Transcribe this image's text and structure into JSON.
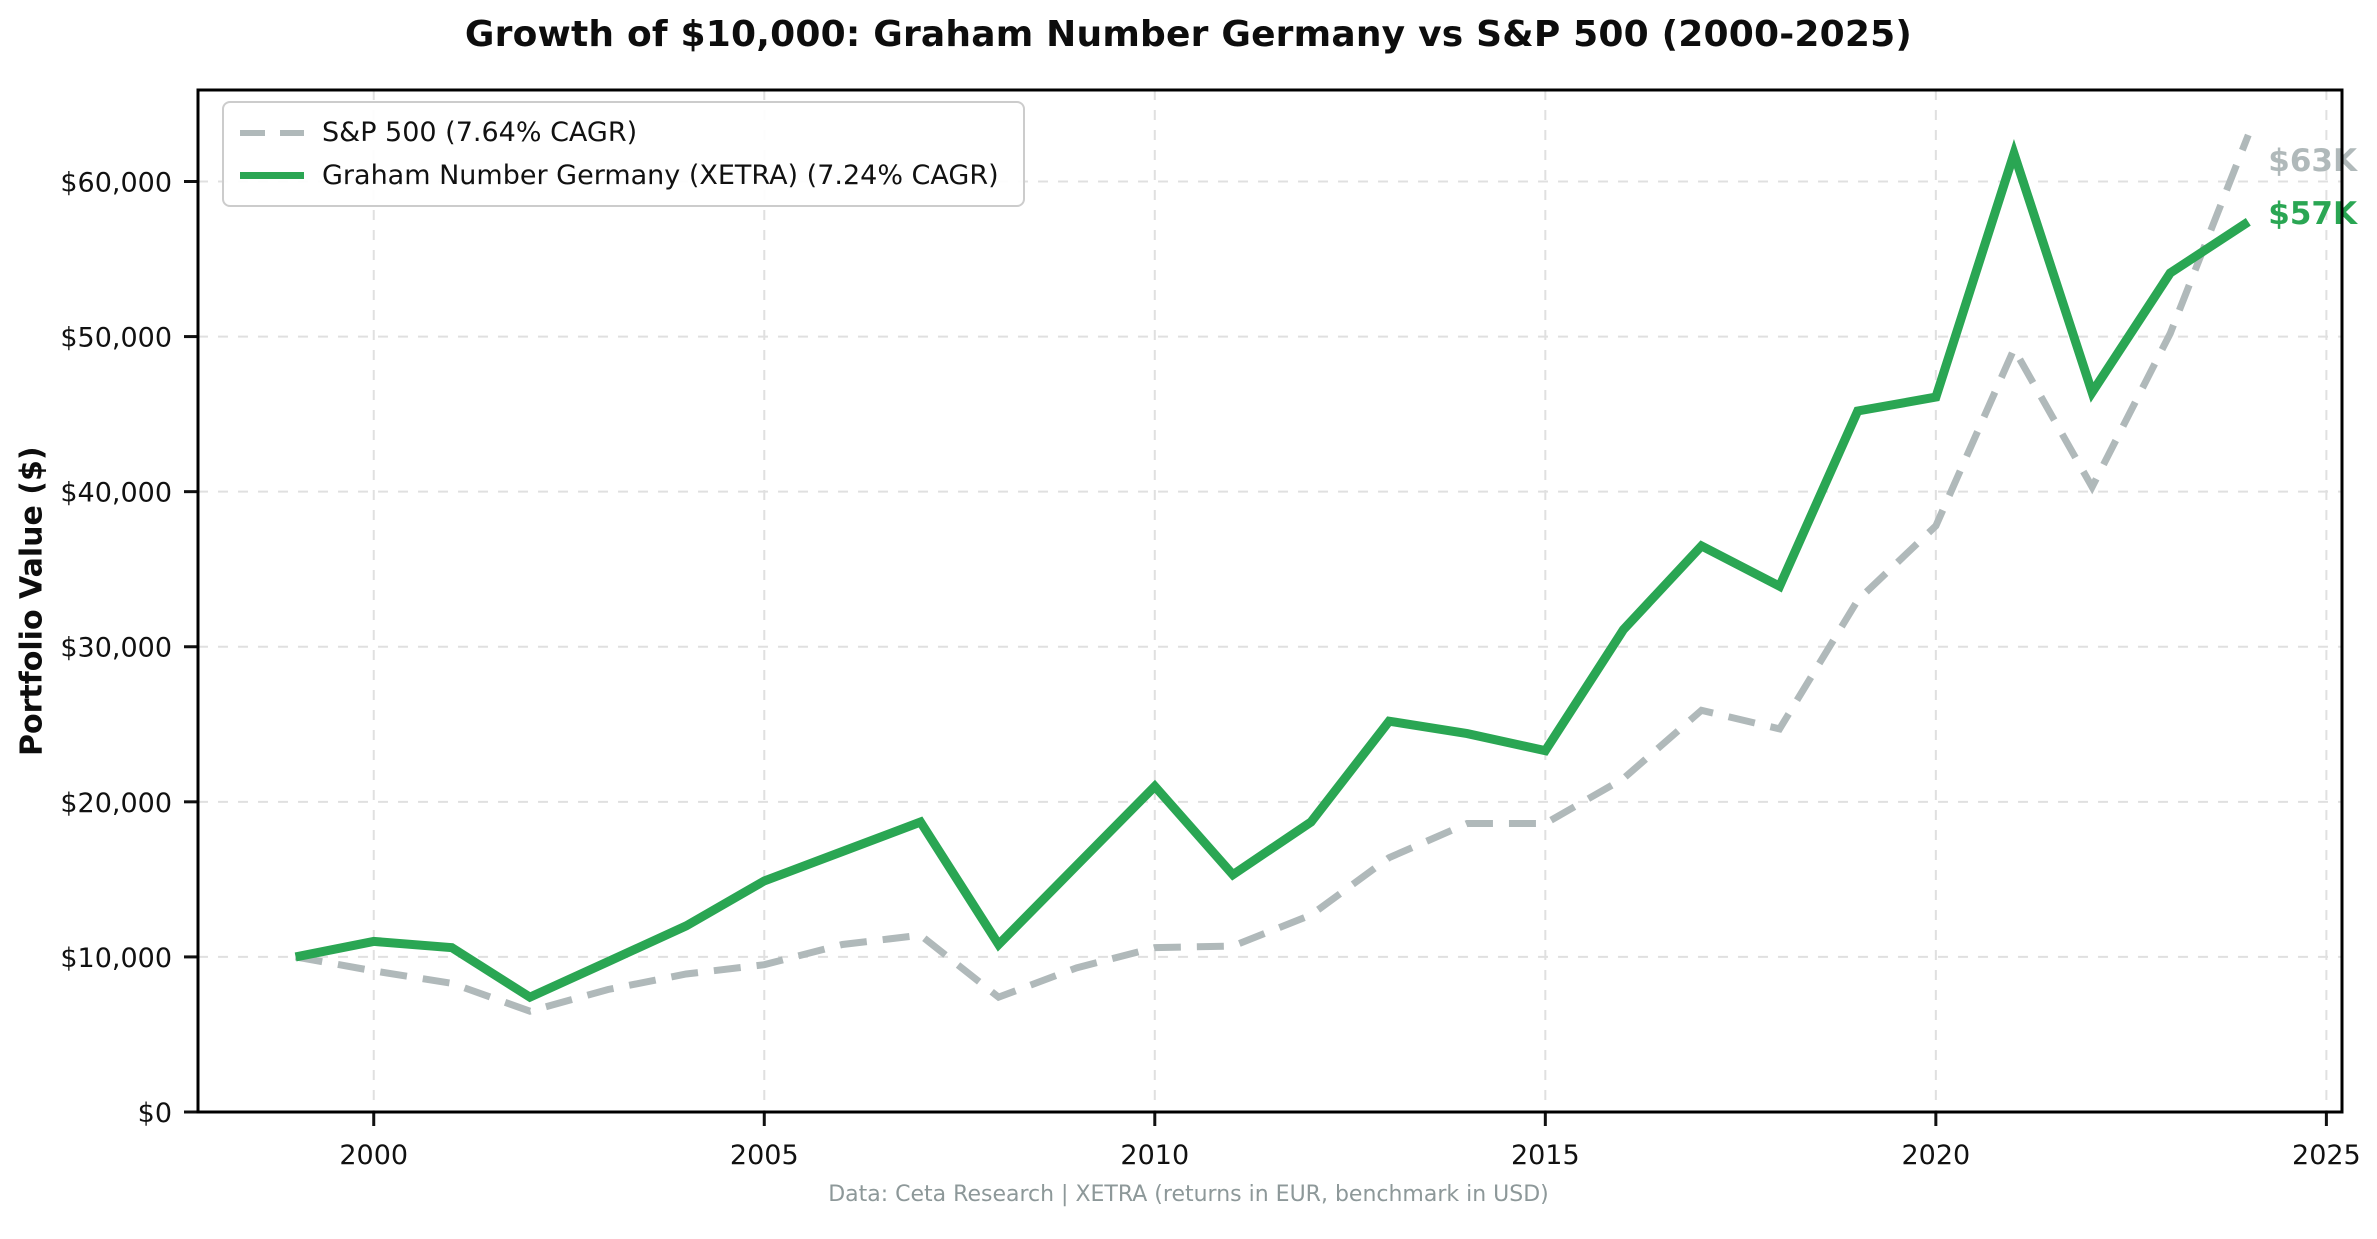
{
  "figure": {
    "title": "Growth of $10,000: Graham Number Germany vs S&P 500 (2000-2025)",
    "footer": "Data: Ceta Research | XETRA (returns in EUR, benchmark in USD)"
  },
  "chart_data": {
    "type": "line",
    "title": "Growth of $10,000: Graham Number Germany vs S&P 500 (2000-2025)",
    "xlabel": "",
    "ylabel": "Portfolio Value ($)",
    "grid": true,
    "legend_position": "upper left",
    "xlim": [
      1997.75,
      2025.2
    ],
    "ylim": [
      0,
      65900
    ],
    "x": [
      1999,
      2000,
      2001,
      2002,
      2003,
      2004,
      2005,
      2006,
      2007,
      2008,
      2009,
      2010,
      2011,
      2012,
      2013,
      2014,
      2015,
      2016,
      2017,
      2018,
      2019,
      2020,
      2021,
      2022,
      2023,
      2024
    ],
    "series": [
      {
        "name": "S&P 500 (7.64% CAGR)",
        "color": "#b0b9ba",
        "line_style": "dashed",
        "end_label": "$63K",
        "values": [
          10000,
          9100,
          8300,
          6500,
          7900,
          8900,
          9500,
          10800,
          11400,
          7400,
          9300,
          10600,
          10700,
          12700,
          16400,
          18600,
          18600,
          21500,
          25900,
          24700,
          33000,
          37800,
          49200,
          40300,
          50200,
          63000
        ]
      },
      {
        "name": "Graham Number Germany (XETRA) (7.24% CAGR)",
        "color": "#2aa653",
        "line_style": "solid",
        "end_label": "$57K",
        "values": [
          10000,
          11000,
          10600,
          7400,
          9700,
          12000,
          14900,
          16800,
          18700,
          10800,
          15900,
          21000,
          15300,
          18700,
          25200,
          24400,
          23300,
          31100,
          36500,
          33900,
          45200,
          46100,
          61800,
          46400,
          54100,
          57400
        ]
      }
    ],
    "x_ticks": [
      {
        "value": 2000,
        "label": "2000"
      },
      {
        "value": 2005,
        "label": "2005"
      },
      {
        "value": 2010,
        "label": "2010"
      },
      {
        "value": 2015,
        "label": "2015"
      },
      {
        "value": 2020,
        "label": "2020"
      },
      {
        "value": 2025,
        "label": "2025"
      }
    ],
    "y_ticks": [
      {
        "value": 0,
        "label": "$0"
      },
      {
        "value": 10000,
        "label": "$10,000"
      },
      {
        "value": 20000,
        "label": "$20,000"
      },
      {
        "value": 30000,
        "label": "$30,000"
      },
      {
        "value": 40000,
        "label": "$40,000"
      },
      {
        "value": 50000,
        "label": "$50,000"
      },
      {
        "value": 60000,
        "label": "$60,000"
      }
    ]
  }
}
